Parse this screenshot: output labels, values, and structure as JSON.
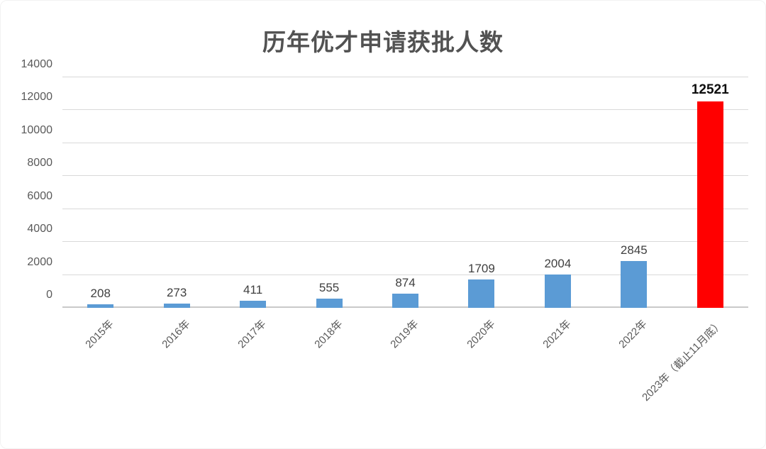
{
  "chart_data": {
    "type": "bar",
    "title": "历年优才申请获批人数",
    "categories": [
      "2015年",
      "2016年",
      "2017年",
      "2018年",
      "2019年",
      "2020年",
      "2021年",
      "2022年",
      "2023年（截止11月底）"
    ],
    "values": [
      208,
      273,
      411,
      555,
      874,
      1709,
      2004,
      2845,
      12521
    ],
    "data_labels": [
      "208",
      "273",
      "411",
      "555",
      "874",
      "1709",
      "2004",
      "2845",
      "12521"
    ],
    "highlight_index": 8,
    "xlabel": "",
    "ylabel": "",
    "ylim": [
      0,
      14000
    ],
    "yticks": [
      0,
      2000,
      4000,
      6000,
      8000,
      10000,
      12000,
      14000
    ],
    "ytick_labels": [
      "0",
      "2000",
      "4000",
      "6000",
      "8000",
      "10000",
      "12000",
      "14000"
    ],
    "grid": "horizontal",
    "legend_position": "none",
    "x_label_rotation_deg": 45,
    "colors": {
      "bar": "#5B9BD5",
      "highlight_bar": "#FF0000",
      "gridline": "#D9D9D9",
      "axis_text": "#595959",
      "data_label_text": "#3F3F3F",
      "highlight_label_text": "#0D0D0D",
      "title_text": "#525252",
      "background": "#FFFFFF"
    }
  }
}
